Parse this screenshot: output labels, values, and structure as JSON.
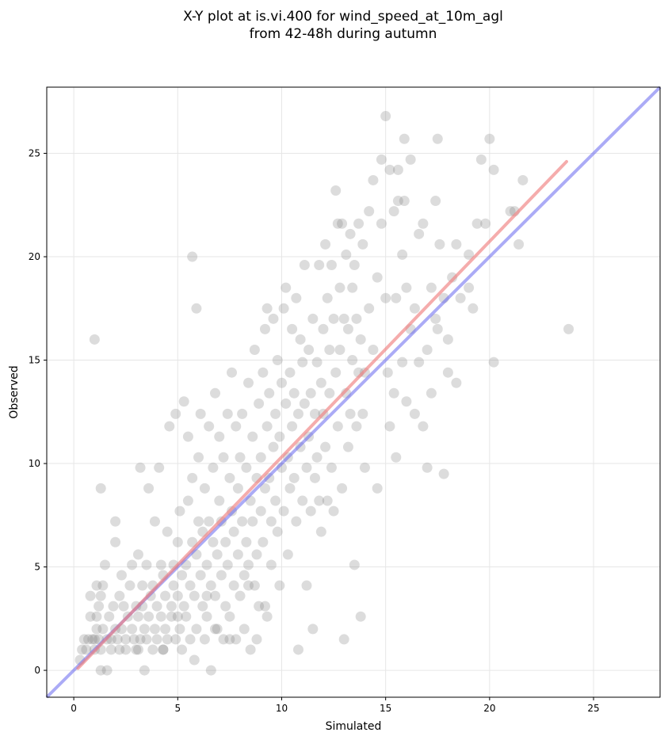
{
  "chart_data": {
    "type": "scatter",
    "title": "X-Y plot at is.vi.400 for wind_speed_at_10m_agl",
    "subtitle": "from 42-48h during autumn",
    "xlabel": "Simulated",
    "ylabel": "Observed",
    "xlim": [
      -1.3,
      28.2
    ],
    "ylim": [
      -1.3,
      28.2
    ],
    "xticks": [
      0,
      5,
      10,
      15,
      20,
      25
    ],
    "yticks": [
      0,
      5,
      10,
      15,
      20,
      25
    ],
    "grid": true,
    "colors": {
      "points": "#808080",
      "fit_line": "#f08080",
      "identity_line": "#6666ee",
      "grid": "#e6e6e6"
    },
    "fit_line": {
      "x": [
        0.2,
        23.7
      ],
      "y": [
        0.1,
        24.6
      ]
    },
    "identity_line": {
      "x": [
        -1.3,
        28.2
      ],
      "y": [
        -1.3,
        28.2
      ]
    },
    "points": [
      [
        0.3,
        0.5
      ],
      [
        0.4,
        1.0
      ],
      [
        0.5,
        1.5
      ],
      [
        0.6,
        1.0
      ],
      [
        0.7,
        1.5
      ],
      [
        0.8,
        2.6
      ],
      [
        0.8,
        3.6
      ],
      [
        0.9,
        1.5
      ],
      [
        1.0,
        1.0
      ],
      [
        1.0,
        1.5
      ],
      [
        1.1,
        2.0
      ],
      [
        1.1,
        2.6
      ],
      [
        1.1,
        4.1
      ],
      [
        1.2,
        3.1
      ],
      [
        1.2,
        1.5
      ],
      [
        1.3,
        0.0
      ],
      [
        1.3,
        1.0
      ],
      [
        1.3,
        3.6
      ],
      [
        1.4,
        2.0
      ],
      [
        1.4,
        4.1
      ],
      [
        1.5,
        5.1
      ],
      [
        1.6,
        1.5
      ],
      [
        1.6,
        0.0
      ],
      [
        1.7,
        2.6
      ],
      [
        1.8,
        1.5
      ],
      [
        1.8,
        1.0
      ],
      [
        1.9,
        3.1
      ],
      [
        2.0,
        2.0
      ],
      [
        2.0,
        6.2
      ],
      [
        2.1,
        1.5
      ],
      [
        2.2,
        1.0
      ],
      [
        2.2,
        3.6
      ],
      [
        2.3,
        2.0
      ],
      [
        2.3,
        4.6
      ],
      [
        2.4,
        3.1
      ],
      [
        2.5,
        1.5
      ],
      [
        2.5,
        1.0
      ],
      [
        2.6,
        2.6
      ],
      [
        2.7,
        4.1
      ],
      [
        2.8,
        2.0
      ],
      [
        2.8,
        5.1
      ],
      [
        2.9,
        1.5
      ],
      [
        3.0,
        3.1
      ],
      [
        3.0,
        1.0
      ],
      [
        3.1,
        2.6
      ],
      [
        3.1,
        5.6
      ],
      [
        3.2,
        1.5
      ],
      [
        3.2,
        9.8
      ],
      [
        3.3,
        3.1
      ],
      [
        3.3,
        4.1
      ],
      [
        3.4,
        2.0
      ],
      [
        3.4,
        0.0
      ],
      [
        3.5,
        1.5
      ],
      [
        3.5,
        5.1
      ],
      [
        3.6,
        2.6
      ],
      [
        3.6,
        8.8
      ],
      [
        3.7,
        3.6
      ],
      [
        3.8,
        1.0
      ],
      [
        3.8,
        4.1
      ],
      [
        3.9,
        2.0
      ],
      [
        3.9,
        7.2
      ],
      [
        4.0,
        3.1
      ],
      [
        4.0,
        1.5
      ],
      [
        4.1,
        9.8
      ],
      [
        4.2,
        2.6
      ],
      [
        4.2,
        5.1
      ],
      [
        4.3,
        1.0
      ],
      [
        4.3,
        4.6
      ],
      [
        4.4,
        3.6
      ],
      [
        4.4,
        2.0
      ],
      [
        4.5,
        6.7
      ],
      [
        4.5,
        1.5
      ],
      [
        4.6,
        11.8
      ],
      [
        4.7,
        3.1
      ],
      [
        4.7,
        2.6
      ],
      [
        4.8,
        4.1
      ],
      [
        4.8,
        5.1
      ],
      [
        4.9,
        12.4
      ],
      [
        4.9,
        1.5
      ],
      [
        5.0,
        3.6
      ],
      [
        5.0,
        6.2
      ],
      [
        5.1,
        2.0
      ],
      [
        5.1,
        7.7
      ],
      [
        5.2,
        4.6
      ],
      [
        5.2,
        1.0
      ],
      [
        5.3,
        13.0
      ],
      [
        5.3,
        3.1
      ],
      [
        5.4,
        5.1
      ],
      [
        5.4,
        2.6
      ],
      [
        5.5,
        8.2
      ],
      [
        5.5,
        11.3
      ],
      [
        5.6,
        4.1
      ],
      [
        5.6,
        1.5
      ],
      [
        5.7,
        6.2
      ],
      [
        5.7,
        9.3
      ],
      [
        5.8,
        3.6
      ],
      [
        5.8,
        0.5
      ],
      [
        5.9,
        5.6
      ],
      [
        5.9,
        2.0
      ],
      [
        6.0,
        7.2
      ],
      [
        6.0,
        10.3
      ],
      [
        6.1,
        4.6
      ],
      [
        6.1,
        12.4
      ],
      [
        6.2,
        3.1
      ],
      [
        6.2,
        6.7
      ],
      [
        6.3,
        1.5
      ],
      [
        6.3,
        8.8
      ],
      [
        6.4,
        5.1
      ],
      [
        6.4,
        2.6
      ],
      [
        6.5,
        7.2
      ],
      [
        6.5,
        11.8
      ],
      [
        6.6,
        4.1
      ],
      [
        6.6,
        0.0
      ],
      [
        6.7,
        6.2
      ],
      [
        6.7,
        9.8
      ],
      [
        6.8,
        3.6
      ],
      [
        6.8,
        13.4
      ],
      [
        6.9,
        5.6
      ],
      [
        6.9,
        2.0
      ],
      [
        7.0,
        8.2
      ],
      [
        7.0,
        11.3
      ],
      [
        7.1,
        4.6
      ],
      [
        7.1,
        7.2
      ],
      [
        7.2,
        1.5
      ],
      [
        7.2,
        10.3
      ],
      [
        7.3,
        6.2
      ],
      [
        7.3,
        3.1
      ],
      [
        7.4,
        5.1
      ],
      [
        7.4,
        12.4
      ],
      [
        7.5,
        9.3
      ],
      [
        7.5,
        2.6
      ],
      [
        7.6,
        7.7
      ],
      [
        7.6,
        14.4
      ],
      [
        7.7,
        4.1
      ],
      [
        7.7,
        6.7
      ],
      [
        7.8,
        11.8
      ],
      [
        7.8,
        1.5
      ],
      [
        7.9,
        8.8
      ],
      [
        7.9,
        5.6
      ],
      [
        8.0,
        3.6
      ],
      [
        8.0,
        10.3
      ],
      [
        8.1,
        7.2
      ],
      [
        8.1,
        12.4
      ],
      [
        8.2,
        4.6
      ],
      [
        8.2,
        2.0
      ],
      [
        8.3,
        9.8
      ],
      [
        8.3,
        6.2
      ],
      [
        8.4,
        13.9
      ],
      [
        8.4,
        5.1
      ],
      [
        8.5,
        8.2
      ],
      [
        8.5,
        1.0
      ],
      [
        8.6,
        11.3
      ],
      [
        8.6,
        7.2
      ],
      [
        8.7,
        4.1
      ],
      [
        8.7,
        15.5
      ],
      [
        8.8,
        9.3
      ],
      [
        8.8,
        5.6
      ],
      [
        8.9,
        12.9
      ],
      [
        8.9,
        3.1
      ],
      [
        9.0,
        7.7
      ],
      [
        9.0,
        10.3
      ],
      [
        9.1,
        14.4
      ],
      [
        9.1,
        6.2
      ],
      [
        9.2,
        8.8
      ],
      [
        9.2,
        16.5
      ],
      [
        9.3,
        11.8
      ],
      [
        9.3,
        2.6
      ],
      [
        9.4,
        9.3
      ],
      [
        9.4,
        13.4
      ],
      [
        9.5,
        7.2
      ],
      [
        9.5,
        5.1
      ],
      [
        9.6,
        10.8
      ],
      [
        9.6,
        17.0
      ],
      [
        9.7,
        12.4
      ],
      [
        9.7,
        8.2
      ],
      [
        9.8,
        15.0
      ],
      [
        9.8,
        6.7
      ],
      [
        9.9,
        11.3
      ],
      [
        9.9,
        4.1
      ],
      [
        10.0,
        13.9
      ],
      [
        10.0,
        9.8
      ],
      [
        10.1,
        17.5
      ],
      [
        10.1,
        7.7
      ],
      [
        10.2,
        12.9
      ],
      [
        10.2,
        18.5
      ],
      [
        10.3,
        10.3
      ],
      [
        10.3,
        5.6
      ],
      [
        10.4,
        14.4
      ],
      [
        10.4,
        8.8
      ],
      [
        10.5,
        16.5
      ],
      [
        10.5,
        11.8
      ],
      [
        10.6,
        9.3
      ],
      [
        10.6,
        13.4
      ],
      [
        10.7,
        7.2
      ],
      [
        10.7,
        18.0
      ],
      [
        10.8,
        12.4
      ],
      [
        10.8,
        1.0
      ],
      [
        10.9,
        10.8
      ],
      [
        10.9,
        16.0
      ],
      [
        11.0,
        14.9
      ],
      [
        11.0,
        8.2
      ],
      [
        11.1,
        19.6
      ],
      [
        11.1,
        12.9
      ],
      [
        11.2,
        9.8
      ],
      [
        11.2,
        4.1
      ],
      [
        11.3,
        15.5
      ],
      [
        11.3,
        11.3
      ],
      [
        11.4,
        13.4
      ],
      [
        11.4,
        7.7
      ],
      [
        11.5,
        17.0
      ],
      [
        11.5,
        2.0
      ],
      [
        11.6,
        12.4
      ],
      [
        11.6,
        9.3
      ],
      [
        11.7,
        14.9
      ],
      [
        11.7,
        10.3
      ],
      [
        11.8,
        19.6
      ],
      [
        11.8,
        8.2
      ],
      [
        11.9,
        13.9
      ],
      [
        11.9,
        6.7
      ],
      [
        12.0,
        16.5
      ],
      [
        12.0,
        12.4
      ],
      [
        12.1,
        20.6
      ],
      [
        12.1,
        10.8
      ],
      [
        12.2,
        18.0
      ],
      [
        12.2,
        8.2
      ],
      [
        12.3,
        15.5
      ],
      [
        12.3,
        13.4
      ],
      [
        12.4,
        19.6
      ],
      [
        12.4,
        9.8
      ],
      [
        12.5,
        17.0
      ],
      [
        12.5,
        7.7
      ],
      [
        12.6,
        23.2
      ],
      [
        12.6,
        14.4
      ],
      [
        12.7,
        21.6
      ],
      [
        12.7,
        11.8
      ],
      [
        12.8,
        18.5
      ],
      [
        12.8,
        15.5
      ],
      [
        12.9,
        21.6
      ],
      [
        12.9,
        8.8
      ],
      [
        13.0,
        17.0
      ],
      [
        13.0,
        1.5
      ],
      [
        13.1,
        13.4
      ],
      [
        13.1,
        20.1
      ],
      [
        13.2,
        16.5
      ],
      [
        13.2,
        10.8
      ],
      [
        13.3,
        21.1
      ],
      [
        13.3,
        12.4
      ],
      [
        13.4,
        18.5
      ],
      [
        13.4,
        15.0
      ],
      [
        13.5,
        19.6
      ],
      [
        13.5,
        5.1
      ],
      [
        13.6,
        17.0
      ],
      [
        13.6,
        11.8
      ],
      [
        13.7,
        21.6
      ],
      [
        13.7,
        14.4
      ],
      [
        13.8,
        16.0
      ],
      [
        13.8,
        2.6
      ],
      [
        13.9,
        20.6
      ],
      [
        13.9,
        12.4
      ],
      [
        14.0,
        14.4
      ],
      [
        14.0,
        9.8
      ],
      [
        14.2,
        22.2
      ],
      [
        14.2,
        17.5
      ],
      [
        14.4,
        23.7
      ],
      [
        14.4,
        15.5
      ],
      [
        14.6,
        19.0
      ],
      [
        14.6,
        8.8
      ],
      [
        14.8,
        24.7
      ],
      [
        14.8,
        21.6
      ],
      [
        15.0,
        26.8
      ],
      [
        15.0,
        18.0
      ],
      [
        15.1,
        14.4
      ],
      [
        15.2,
        24.2
      ],
      [
        15.2,
        11.8
      ],
      [
        15.4,
        22.2
      ],
      [
        15.4,
        13.4
      ],
      [
        15.5,
        18.0
      ],
      [
        15.5,
        10.3
      ],
      [
        15.6,
        22.7
      ],
      [
        15.6,
        24.2
      ],
      [
        15.8,
        14.9
      ],
      [
        15.8,
        20.1
      ],
      [
        15.9,
        22.7
      ],
      [
        15.9,
        25.7
      ],
      [
        16.0,
        13.0
      ],
      [
        16.0,
        18.5
      ],
      [
        16.2,
        24.7
      ],
      [
        16.2,
        16.5
      ],
      [
        16.4,
        17.5
      ],
      [
        16.4,
        12.4
      ],
      [
        16.6,
        21.1
      ],
      [
        16.6,
        14.9
      ],
      [
        16.8,
        21.6
      ],
      [
        16.8,
        11.8
      ],
      [
        17.0,
        15.5
      ],
      [
        17.0,
        9.8
      ],
      [
        17.2,
        18.5
      ],
      [
        17.2,
        13.4
      ],
      [
        17.4,
        22.7
      ],
      [
        17.4,
        17.0
      ],
      [
        17.5,
        25.7
      ],
      [
        17.5,
        16.5
      ],
      [
        17.6,
        20.6
      ],
      [
        17.8,
        18.0
      ],
      [
        17.8,
        9.5
      ],
      [
        18.0,
        16.0
      ],
      [
        18.0,
        14.4
      ],
      [
        18.2,
        19.0
      ],
      [
        18.4,
        20.6
      ],
      [
        18.4,
        13.9
      ],
      [
        18.6,
        18.0
      ],
      [
        19.0,
        20.1
      ],
      [
        19.0,
        18.5
      ],
      [
        19.2,
        17.5
      ],
      [
        19.4,
        21.6
      ],
      [
        19.6,
        24.7
      ],
      [
        19.8,
        21.6
      ],
      [
        20.0,
        25.7
      ],
      [
        20.2,
        24.2
      ],
      [
        20.2,
        14.9
      ],
      [
        21.0,
        22.2
      ],
      [
        21.2,
        22.2
      ],
      [
        21.4,
        20.6
      ],
      [
        21.6,
        23.7
      ],
      [
        23.8,
        16.5
      ],
      [
        1.0,
        16.0
      ],
      [
        5.7,
        20.0
      ],
      [
        5.9,
        17.5
      ],
      [
        9.3,
        17.5
      ],
      [
        1.3,
        8.8
      ],
      [
        2.0,
        7.2
      ],
      [
        3.1,
        1.0
      ],
      [
        4.3,
        1.0
      ],
      [
        6.8,
        2.0
      ],
      [
        7.5,
        1.5
      ],
      [
        8.8,
        1.5
      ],
      [
        9.2,
        3.1
      ],
      [
        8.4,
        4.1
      ],
      [
        6.4,
        3.6
      ],
      [
        5.0,
        2.6
      ]
    ]
  }
}
